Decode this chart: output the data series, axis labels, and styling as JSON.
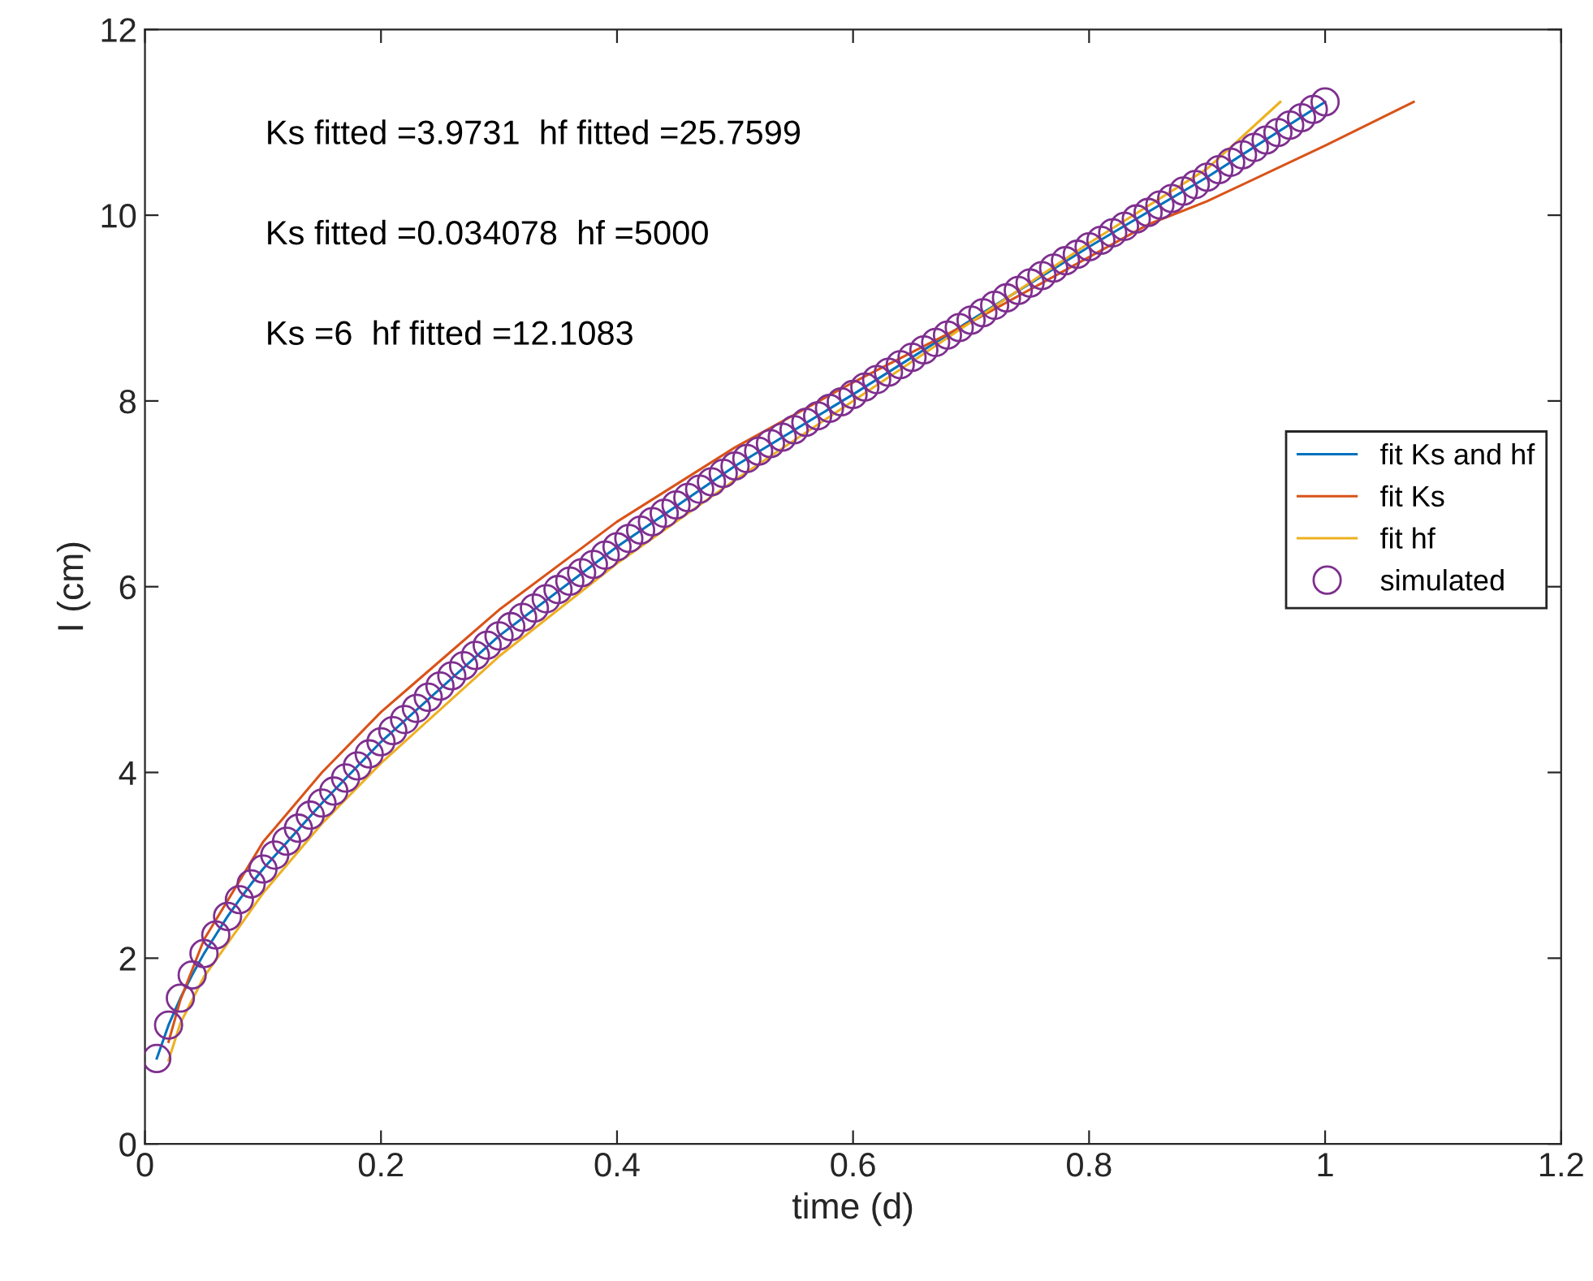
{
  "chart_data": {
    "type": "line",
    "xlabel": "time (d)",
    "ylabel": "I (cm)",
    "xlim": [
      0,
      1.2
    ],
    "xticks": [
      0,
      0.2,
      0.4,
      0.6,
      0.8,
      1,
      1.2
    ],
    "ylim": [
      0,
      12
    ],
    "yticks": [
      0,
      2,
      4,
      6,
      8,
      10,
      12
    ],
    "grid": false,
    "legend": "right",
    "annotations": [
      "Ks fitted =3.9731  hf fitted =25.7599",
      "Ks fitted =0.034078  hf =5000",
      "Ks =6  hf fitted =12.1083"
    ],
    "series": [
      {
        "name": "fit Ks and hf",
        "color": "#0072bd",
        "x": [
          0.01,
          0.02,
          0.03,
          0.04,
          0.05,
          0.06,
          0.07,
          0.08,
          0.09,
          0.1,
          0.15,
          0.2,
          0.3,
          0.4,
          0.5,
          0.6,
          0.7,
          0.8,
          0.9,
          1.0
        ],
        "values": [
          0.92,
          1.28,
          1.57,
          1.82,
          2.05,
          2.25,
          2.45,
          2.63,
          2.8,
          2.96,
          3.67,
          4.33,
          5.47,
          6.43,
          7.3,
          8.07,
          8.87,
          9.66,
          10.41,
          11.22
        ]
      },
      {
        "name": "fit Ks",
        "color": "#d95319",
        "x": [
          0.02,
          0.03,
          0.05,
          0.1,
          0.15,
          0.2,
          0.3,
          0.4,
          0.5,
          0.6,
          0.7,
          0.8,
          0.85,
          0.9,
          1.0,
          1.075
        ],
        "values": [
          1.1,
          1.55,
          2.2,
          3.25,
          4.0,
          4.65,
          5.75,
          6.7,
          7.5,
          8.2,
          8.85,
          9.55,
          9.9,
          10.15,
          10.75,
          11.22
        ]
      },
      {
        "name": "fit hf",
        "color": "#edb120",
        "x": [
          0.02,
          0.03,
          0.05,
          0.1,
          0.15,
          0.2,
          0.3,
          0.4,
          0.5,
          0.6,
          0.7,
          0.8,
          0.9,
          0.962
        ],
        "values": [
          0.9,
          1.3,
          1.8,
          2.7,
          3.45,
          4.1,
          5.25,
          6.25,
          7.15,
          8.0,
          8.85,
          9.7,
          10.5,
          11.22
        ]
      },
      {
        "name": "simulated",
        "type": "scatter",
        "marker": "circle",
        "color": "#7e2f8e",
        "x": [
          0.01,
          0.02,
          0.03,
          0.04,
          0.05,
          0.06,
          0.07,
          0.08,
          0.09,
          0.1,
          0.11,
          0.12,
          0.13,
          0.14,
          0.15,
          0.16,
          0.17,
          0.18,
          0.19,
          0.2,
          0.21,
          0.22,
          0.23,
          0.24,
          0.25,
          0.26,
          0.27,
          0.28,
          0.29,
          0.3,
          0.31,
          0.32,
          0.33,
          0.34,
          0.35,
          0.36,
          0.37,
          0.38,
          0.39,
          0.4,
          0.41,
          0.42,
          0.43,
          0.44,
          0.45,
          0.46,
          0.47,
          0.48,
          0.49,
          0.5,
          0.51,
          0.52,
          0.53,
          0.54,
          0.55,
          0.56,
          0.57,
          0.58,
          0.59,
          0.6,
          0.61,
          0.62,
          0.63,
          0.64,
          0.65,
          0.66,
          0.67,
          0.68,
          0.69,
          0.7,
          0.71,
          0.72,
          0.73,
          0.74,
          0.75,
          0.76,
          0.77,
          0.78,
          0.79,
          0.8,
          0.81,
          0.82,
          0.83,
          0.84,
          0.85,
          0.86,
          0.87,
          0.88,
          0.89,
          0.9,
          0.91,
          0.92,
          0.93,
          0.94,
          0.95,
          0.96,
          0.97,
          0.98,
          0.99,
          1.0
        ],
        "values": [
          0.92,
          1.28,
          1.57,
          1.82,
          2.05,
          2.25,
          2.45,
          2.63,
          2.8,
          2.96,
          3.11,
          3.26,
          3.4,
          3.54,
          3.67,
          3.8,
          3.94,
          4.07,
          4.2,
          4.33,
          4.45,
          4.57,
          4.69,
          4.81,
          4.93,
          5.04,
          5.15,
          5.26,
          5.37,
          5.47,
          5.57,
          5.67,
          5.77,
          5.87,
          5.97,
          6.06,
          6.15,
          6.24,
          6.34,
          6.43,
          6.52,
          6.61,
          6.7,
          6.79,
          6.88,
          6.96,
          7.05,
          7.13,
          7.22,
          7.3,
          7.38,
          7.46,
          7.54,
          7.61,
          7.69,
          7.77,
          7.84,
          7.92,
          7.99,
          8.07,
          8.15,
          8.23,
          8.31,
          8.39,
          8.47,
          8.55,
          8.63,
          8.71,
          8.79,
          8.87,
          8.95,
          9.03,
          9.11,
          9.19,
          9.27,
          9.35,
          9.43,
          9.51,
          9.58,
          9.66,
          9.73,
          9.81,
          9.88,
          9.96,
          10.03,
          10.11,
          10.18,
          10.26,
          10.33,
          10.41,
          10.49,
          10.57,
          10.65,
          10.73,
          10.81,
          10.89,
          10.97,
          11.05,
          11.14,
          11.22
        ]
      }
    ]
  }
}
